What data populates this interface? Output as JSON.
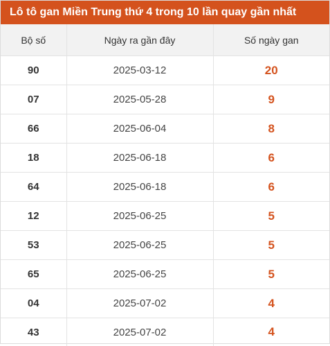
{
  "title": "Lô tô gan Miền Trung thứ 4 trong 10 lần quay gần nhất",
  "columns": [
    "Bộ số",
    "Ngày ra gần đây",
    "Số ngày gan"
  ],
  "rows": [
    {
      "number": "90",
      "date": "2025-03-12",
      "days": "20"
    },
    {
      "number": "07",
      "date": "2025-05-28",
      "days": "9"
    },
    {
      "number": "66",
      "date": "2025-06-04",
      "days": "8"
    },
    {
      "number": "18",
      "date": "2025-06-18",
      "days": "6"
    },
    {
      "number": "64",
      "date": "2025-06-18",
      "days": "6"
    },
    {
      "number": "12",
      "date": "2025-06-25",
      "days": "5"
    },
    {
      "number": "53",
      "date": "2025-06-25",
      "days": "5"
    },
    {
      "number": "65",
      "date": "2025-06-25",
      "days": "5"
    },
    {
      "number": "04",
      "date": "2025-07-02",
      "days": "4"
    },
    {
      "number": "43",
      "date": "2025-07-02",
      "days": "4"
    }
  ],
  "colors": {
    "header_bg": "#d4521d",
    "accent_value": "#d4521d",
    "column_header_bg": "#f2f2f2"
  }
}
